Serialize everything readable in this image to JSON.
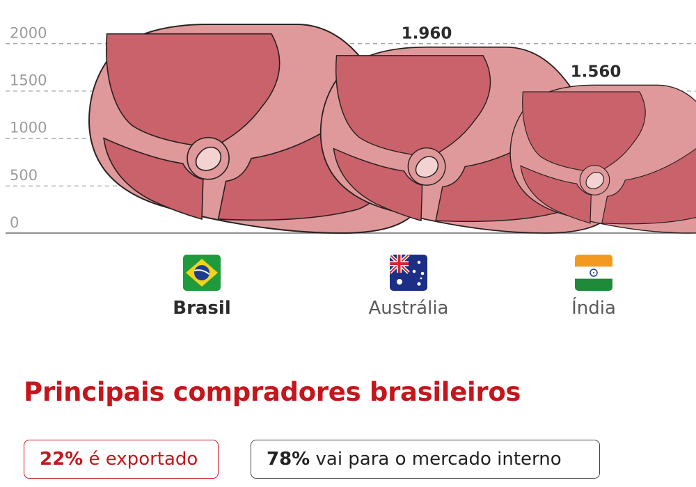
{
  "chart_data": {
    "type": "bar",
    "categories": [
      "Brasil",
      "Austrália",
      "Índia"
    ],
    "values": [
      2200,
      1960,
      1560
    ],
    "value_labels": [
      "",
      "1.960",
      "1.560"
    ],
    "yticks": [
      "0",
      "500",
      "1000",
      "1500",
      "2000"
    ],
    "ylim": [
      0,
      2200
    ],
    "grid": true,
    "colors": {
      "meat": "#c9626a",
      "fat": "#e0999b",
      "bone": "#f3d3d1",
      "outline": "#2a2020",
      "grid": "#9a9a9a",
      "tick": "#9b9b9b"
    }
  },
  "countries": [
    {
      "name": "Brasil",
      "flag": "brazil-flag-icon",
      "highlight": true
    },
    {
      "name": "Austrália",
      "flag": "australia-flag-icon",
      "highlight": false
    },
    {
      "name": "Índia",
      "flag": "india-flag-icon",
      "highlight": false
    }
  ],
  "section": {
    "title": "Principais compradores brasileiros",
    "export_pct": "22%",
    "export_text": " é exportado",
    "internal_pct": "78%",
    "internal_text": " vai para o mercado interno",
    "accent": "#c4161c"
  }
}
